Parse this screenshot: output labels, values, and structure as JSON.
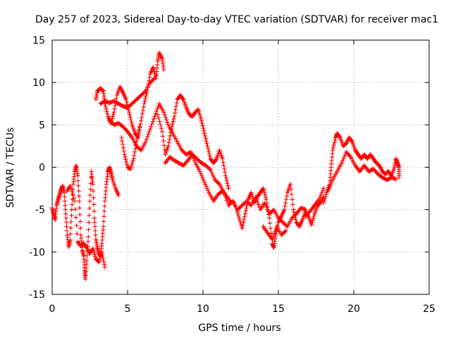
{
  "chart_data": {
    "type": "scatter",
    "title": "Day 257 of 2023, Sidereal Day-to-day VTEC variation (SDTVAR) for receiver mac1",
    "xlabel": "GPS time / hours",
    "ylabel": "SDTVAR / TECUs",
    "xlim": [
      0,
      25
    ],
    "ylim": [
      -15,
      15
    ],
    "xticks": [
      "0",
      "5",
      "10",
      "15",
      "20",
      "25"
    ],
    "yticks": [
      "-15",
      "-10",
      "-5",
      "0",
      "5",
      "10",
      "15"
    ],
    "grid": true,
    "marker": "+",
    "color": "#ff0000",
    "series": [
      {
        "name": "mac1",
        "points": [
          [
            0.0,
            -4.8
          ],
          [
            0.1,
            -5.6
          ],
          [
            0.2,
            -6.2
          ],
          [
            0.3,
            -4.5
          ],
          [
            0.4,
            -3.8
          ],
          [
            0.5,
            -3.2
          ],
          [
            0.6,
            -2.6
          ],
          [
            0.7,
            -2.2
          ],
          [
            0.8,
            -3.0
          ],
          [
            0.9,
            -5.5
          ],
          [
            1.0,
            -8.0
          ],
          [
            1.1,
            -9.4
          ],
          [
            1.2,
            -8.6
          ],
          [
            1.3,
            -5.0
          ],
          [
            1.4,
            -2.0
          ],
          [
            1.5,
            -0.5
          ],
          [
            1.6,
            0.2
          ],
          [
            1.7,
            -1.0
          ],
          [
            1.8,
            -4.0
          ],
          [
            1.9,
            -8.0
          ],
          [
            2.0,
            -9.8
          ],
          [
            2.1,
            -10.5
          ],
          [
            2.15,
            -12.2
          ],
          [
            2.2,
            -13.2
          ],
          [
            2.3,
            -11.0
          ],
          [
            2.4,
            -8.2
          ],
          [
            2.5,
            -4.0
          ],
          [
            2.6,
            -0.5
          ],
          [
            2.7,
            -2.0
          ],
          [
            2.8,
            -6.0
          ],
          [
            2.9,
            -8.5
          ],
          [
            3.0,
            -9.5
          ],
          [
            3.1,
            -10.2
          ],
          [
            3.2,
            -10.5
          ],
          [
            3.3,
            -9.0
          ],
          [
            3.4,
            -7.0
          ],
          [
            3.5,
            -4.0
          ],
          [
            3.6,
            -2.0
          ],
          [
            3.7,
            -0.5
          ],
          [
            3.8,
            0.0
          ],
          [
            3.9,
            -0.6
          ],
          [
            4.0,
            -1.4
          ],
          [
            4.2,
            -2.5
          ],
          [
            4.4,
            -3.3
          ],
          [
            1.0,
            -2.8
          ],
          [
            1.2,
            -2.2
          ],
          [
            1.5,
            -4.0
          ],
          [
            1.7,
            -8.8
          ],
          [
            1.9,
            -9.3
          ],
          [
            2.1,
            -9.0
          ],
          [
            2.3,
            -9.5
          ],
          [
            2.5,
            -10.2
          ],
          [
            2.7,
            -9.6
          ],
          [
            2.9,
            -10.8
          ],
          [
            3.1,
            -11.2
          ],
          [
            3.3,
            -10.1
          ],
          [
            3.5,
            -11.8
          ],
          [
            2.9,
            8.0
          ],
          [
            3.0,
            9.0
          ],
          [
            3.2,
            9.3
          ],
          [
            3.4,
            9.0
          ],
          [
            3.5,
            7.5
          ],
          [
            3.7,
            6.0
          ],
          [
            3.9,
            5.2
          ],
          [
            4.1,
            6.5
          ],
          [
            4.3,
            8.5
          ],
          [
            4.5,
            9.5
          ],
          [
            4.7,
            8.8
          ],
          [
            4.9,
            8.0
          ],
          [
            5.1,
            6.5
          ],
          [
            5.3,
            5.0
          ],
          [
            5.5,
            4.0
          ],
          [
            5.7,
            3.5
          ],
          [
            5.9,
            5.5
          ],
          [
            6.1,
            7.5
          ],
          [
            6.3,
            9.0
          ],
          [
            6.5,
            11.0
          ],
          [
            6.7,
            11.8
          ],
          [
            6.9,
            10.5
          ],
          [
            7.0,
            12.5
          ],
          [
            7.1,
            13.5
          ],
          [
            7.3,
            12.8
          ],
          [
            7.4,
            11.5
          ],
          [
            3.2,
            7.5
          ],
          [
            3.5,
            7.8
          ],
          [
            3.8,
            7.6
          ],
          [
            4.1,
            7.8
          ],
          [
            4.4,
            7.5
          ],
          [
            4.7,
            7.2
          ],
          [
            5.0,
            7.0
          ],
          [
            5.3,
            7.5
          ],
          [
            5.6,
            8.0
          ],
          [
            5.9,
            8.5
          ],
          [
            6.2,
            9.0
          ],
          [
            6.5,
            10.0
          ],
          [
            6.8,
            10.5
          ],
          [
            3.8,
            5.5
          ],
          [
            4.1,
            5.0
          ],
          [
            4.4,
            5.2
          ],
          [
            4.7,
            4.8
          ],
          [
            5.0,
            4.2
          ],
          [
            5.3,
            3.5
          ],
          [
            5.6,
            2.5
          ],
          [
            5.9,
            2.0
          ],
          [
            6.2,
            3.0
          ],
          [
            6.5,
            4.5
          ],
          [
            6.8,
            6.0
          ],
          [
            7.1,
            7.5
          ],
          [
            7.4,
            6.5
          ],
          [
            7.7,
            5.0
          ],
          [
            8.0,
            4.0
          ],
          [
            8.3,
            3.0
          ],
          [
            8.6,
            2.0
          ],
          [
            8.9,
            1.5
          ],
          [
            9.2,
            1.8
          ],
          [
            9.5,
            0.5
          ],
          [
            9.8,
            -0.5
          ],
          [
            10.1,
            -1.8
          ],
          [
            10.4,
            -3.0
          ],
          [
            10.7,
            -4.0
          ],
          [
            11.0,
            -3.2
          ],
          [
            11.3,
            -2.8
          ],
          [
            11.6,
            -3.5
          ],
          [
            11.9,
            -4.2
          ],
          [
            4.6,
            3.5
          ],
          [
            4.8,
            1.5
          ],
          [
            5.0,
            0.0
          ],
          [
            5.2,
            -0.2
          ],
          [
            5.4,
            1.0
          ],
          [
            5.6,
            3.0
          ],
          [
            5.8,
            4.8
          ],
          [
            7.0,
            6.2
          ],
          [
            7.3,
            4.2
          ],
          [
            7.5,
            1.5
          ],
          [
            7.7,
            2.5
          ],
          [
            7.9,
            4.5
          ],
          [
            8.1,
            6.0
          ],
          [
            8.3,
            8.0
          ],
          [
            8.5,
            8.5
          ],
          [
            8.7,
            8.0
          ],
          [
            8.9,
            7.0
          ],
          [
            9.1,
            6.2
          ],
          [
            9.3,
            6.0
          ],
          [
            9.5,
            6.5
          ],
          [
            9.7,
            6.8
          ],
          [
            9.9,
            5.5
          ],
          [
            10.1,
            4.0
          ],
          [
            10.3,
            2.5
          ],
          [
            10.5,
            1.0
          ],
          [
            10.7,
            0.5
          ],
          [
            10.9,
            1.0
          ],
          [
            11.1,
            2.0
          ],
          [
            11.3,
            1.0
          ],
          [
            11.5,
            -1.0
          ],
          [
            11.7,
            -2.5
          ],
          [
            7.5,
            0.5
          ],
          [
            7.8,
            1.2
          ],
          [
            8.1,
            0.8
          ],
          [
            8.4,
            0.5
          ],
          [
            8.7,
            0.2
          ],
          [
            9.0,
            0.8
          ],
          [
            9.3,
            1.5
          ],
          [
            9.6,
            1.0
          ],
          [
            9.9,
            0.5
          ],
          [
            10.2,
            0.2
          ],
          [
            10.5,
            -0.3
          ],
          [
            10.8,
            -1.5
          ],
          [
            11.1,
            -2.0
          ],
          [
            11.4,
            -3.0
          ],
          [
            11.7,
            -4.5
          ],
          [
            12.0,
            -4.0
          ],
          [
            12.2,
            -4.8
          ],
          [
            12.4,
            -6.0
          ],
          [
            12.6,
            -7.2
          ],
          [
            12.8,
            -5.5
          ],
          [
            13.0,
            -3.8
          ],
          [
            13.2,
            -3.0
          ],
          [
            13.4,
            -4.2
          ],
          [
            13.6,
            -3.5
          ],
          [
            13.8,
            -3.0
          ],
          [
            14.0,
            -2.5
          ],
          [
            14.2,
            -3.8
          ],
          [
            14.4,
            -6.0
          ],
          [
            14.6,
            -9.0
          ],
          [
            14.7,
            -9.5
          ],
          [
            14.8,
            -8.2
          ],
          [
            15.0,
            -6.5
          ],
          [
            15.2,
            -5.8
          ],
          [
            15.4,
            -5.0
          ],
          [
            15.6,
            -3.0
          ],
          [
            15.8,
            -2.0
          ],
          [
            16.0,
            -5.0
          ],
          [
            16.2,
            -6.5
          ],
          [
            16.4,
            -7.0
          ],
          [
            16.6,
            -6.2
          ],
          [
            16.8,
            -5.2
          ],
          [
            17.0,
            -5.8
          ],
          [
            17.2,
            -6.8
          ],
          [
            17.4,
            -5.5
          ],
          [
            17.6,
            -4.5
          ],
          [
            17.8,
            -4.2
          ],
          [
            18.0,
            -3.5
          ],
          [
            12.3,
            -5.0
          ],
          [
            12.6,
            -4.5
          ],
          [
            12.9,
            -4.0
          ],
          [
            13.2,
            -4.5
          ],
          [
            13.5,
            -3.5
          ],
          [
            13.8,
            -5.0
          ],
          [
            14.1,
            -4.2
          ],
          [
            14.4,
            -5.5
          ],
          [
            14.7,
            -5.0
          ],
          [
            15.0,
            -6.0
          ],
          [
            15.3,
            -6.5
          ],
          [
            15.6,
            -7.0
          ],
          [
            15.9,
            -6.0
          ],
          [
            16.2,
            -5.5
          ],
          [
            16.5,
            -4.8
          ],
          [
            16.8,
            -5.0
          ],
          [
            14.0,
            -7.0
          ],
          [
            14.3,
            -7.8
          ],
          [
            14.6,
            -8.5
          ],
          [
            14.9,
            -7.0
          ],
          [
            15.2,
            -8.0
          ],
          [
            15.5,
            -7.5
          ],
          [
            18.0,
            -4.2
          ],
          [
            18.2,
            -3.0
          ],
          [
            18.4,
            -2.0
          ],
          [
            18.5,
            0.0
          ],
          [
            18.6,
            2.0
          ],
          [
            18.8,
            3.5
          ],
          [
            18.9,
            4.0
          ],
          [
            19.1,
            3.5
          ],
          [
            19.3,
            2.5
          ],
          [
            19.5,
            2.8
          ],
          [
            19.7,
            3.5
          ],
          [
            19.9,
            3.0
          ],
          [
            20.1,
            2.0
          ],
          [
            20.3,
            1.5
          ],
          [
            20.5,
            1.0
          ],
          [
            20.7,
            1.5
          ],
          [
            20.9,
            1.0
          ],
          [
            21.1,
            1.5
          ],
          [
            21.3,
            1.0
          ],
          [
            21.5,
            0.5
          ],
          [
            21.7,
            0.2
          ],
          [
            21.9,
            -0.5
          ],
          [
            22.1,
            -0.8
          ],
          [
            22.3,
            -0.5
          ],
          [
            22.5,
            -1.0
          ],
          [
            22.7,
            0.0
          ],
          [
            22.8,
            1.0
          ],
          [
            22.9,
            0.5
          ],
          [
            23.0,
            0.0
          ],
          [
            23.0,
            -1.2
          ],
          [
            18.3,
            -2.8
          ],
          [
            18.6,
            -1.5
          ],
          [
            18.9,
            -0.5
          ],
          [
            19.2,
            0.5
          ],
          [
            19.5,
            1.8
          ],
          [
            19.8,
            1.2
          ],
          [
            20.1,
            0.2
          ],
          [
            20.4,
            -0.5
          ],
          [
            20.7,
            0.2
          ],
          [
            21.0,
            -0.5
          ],
          [
            21.3,
            -0.2
          ],
          [
            21.6,
            -0.8
          ],
          [
            21.9,
            -1.2
          ],
          [
            22.2,
            -1.5
          ],
          [
            22.5,
            -1.2
          ],
          [
            22.8,
            -1.4
          ],
          [
            16.8,
            -5.8
          ],
          [
            17.1,
            -5.2
          ],
          [
            17.4,
            -4.5
          ],
          [
            17.7,
            -3.8
          ],
          [
            18.0,
            -2.5
          ]
        ]
      }
    ]
  }
}
